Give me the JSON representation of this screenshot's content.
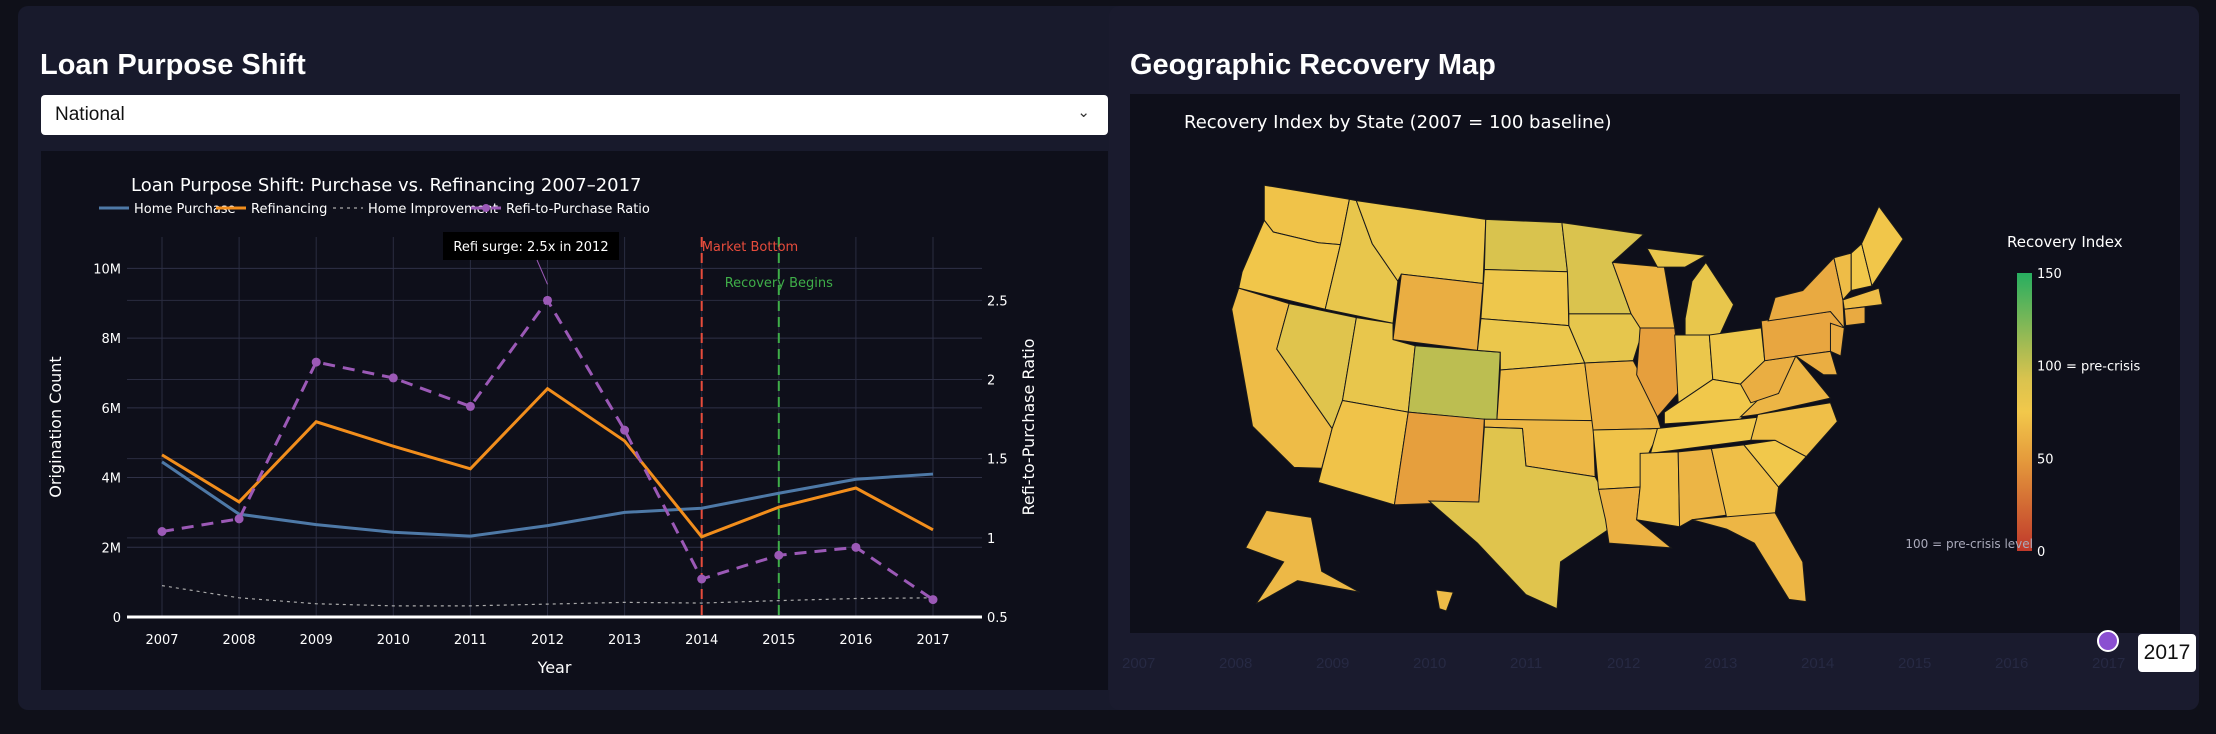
{
  "left_panel": {
    "title": "Loan Purpose Shift",
    "dropdown": {
      "selected": "National",
      "icon": "chevron-down-icon"
    }
  },
  "right_panel": {
    "title": "Geographic Recovery Map",
    "map_title": "Recovery Index by State (2007 = 100 baseline)",
    "colorbar": {
      "title": "Recovery Index",
      "ticks": [
        "150",
        "100 = pre-crisis",
        "50",
        "0"
      ],
      "tick_values": [
        150,
        100,
        50,
        0
      ],
      "range": [
        0,
        150
      ],
      "colorscale": [
        [
          0,
          "#c0392b"
        ],
        [
          0.33,
          "#e59b3c"
        ],
        [
          0.5,
          "#f2c84b"
        ],
        [
          0.62,
          "#d9c34e"
        ],
        [
          0.72,
          "#aebc52"
        ],
        [
          1,
          "#27ae60"
        ]
      ]
    },
    "annotation": "100 = pre-crisis level",
    "slider": {
      "years": [
        "2007",
        "2008",
        "2009",
        "2010",
        "2011",
        "2012",
        "2013",
        "2014",
        "2015",
        "2016",
        "2017"
      ],
      "selected": "2017"
    },
    "state_values": {
      "WA": 72,
      "OR": 74,
      "CA": 68,
      "NV": 88,
      "ID": 82,
      "MT": 80,
      "WY": 60,
      "UT": 82,
      "AZ": 72,
      "CO": 103,
      "NM": 52,
      "ND": 93,
      "SD": 78,
      "NE": 80,
      "KS": 68,
      "OK": 66,
      "TX": 88,
      "MN": 92,
      "IA": 84,
      "MO": 62,
      "AR": 72,
      "LA": 62,
      "WI": 65,
      "IL": 52,
      "MI": 82,
      "MIU": 82,
      "IN": 80,
      "OH": 78,
      "KY": 76,
      "TN": 76,
      "MS": 70,
      "AL": 64,
      "GA": 70,
      "FL": 65,
      "SC": 76,
      "NC": 70,
      "VA": 64,
      "WV": 60,
      "PA": 56,
      "NY": 58,
      "NJ": 58,
      "MD": 60,
      "VT": 68,
      "NH": 76,
      "ME": 74,
      "MA": 68,
      "CT": 58,
      "AK": 66,
      "HI": 68
    }
  },
  "chart_data": {
    "type": "line",
    "title": "Loan Purpose Shift: Purchase vs. Refinancing 2007–2017",
    "xlabel": "Year",
    "ylabel": "Origination Count",
    "y2label": "Refi-to-Purchase Ratio",
    "x": [
      2007,
      2008,
      2009,
      2010,
      2011,
      2012,
      2013,
      2014,
      2015,
      2016,
      2017
    ],
    "x_ticks": [
      "2007",
      "2008",
      "2009",
      "2010",
      "2011",
      "2012",
      "2013",
      "2014",
      "2015",
      "2016",
      "2017"
    ],
    "y_ticks": [
      "0",
      "2M",
      "4M",
      "6M",
      "8M",
      "10M"
    ],
    "y2_ticks": [
      "0.5",
      "1",
      "1.5",
      "2",
      "2.5"
    ],
    "ylim": [
      0,
      10900000
    ],
    "y2lim": [
      0.5,
      2.9
    ],
    "grid": true,
    "legend": "top",
    "series": [
      {
        "name": "Home Purchase",
        "axis": "y",
        "color": "#4e79a7",
        "dash": "solid",
        "values": [
          4450000,
          2950000,
          2650000,
          2430000,
          2320000,
          2620000,
          3000000,
          3120000,
          3550000,
          3950000,
          4100000
        ]
      },
      {
        "name": "Refinancing",
        "axis": "y",
        "color": "#f28e1c",
        "dash": "solid",
        "values": [
          4650000,
          3300000,
          5600000,
          4900000,
          4250000,
          6550000,
          5050000,
          2300000,
          3150000,
          3700000,
          2500000
        ]
      },
      {
        "name": "Home Improvement",
        "axis": "y",
        "color": "#aaaaaa",
        "dash": "dot",
        "values": [
          900000,
          550000,
          380000,
          320000,
          320000,
          370000,
          420000,
          400000,
          470000,
          530000,
          550000
        ]
      },
      {
        "name": "Refi-to-Purchase Ratio",
        "axis": "y2",
        "color": "#9b59b6",
        "dash": "dash",
        "markers": true,
        "values": [
          1.04,
          1.12,
          2.11,
          2.01,
          1.83,
          2.5,
          1.68,
          0.74,
          0.89,
          0.94,
          0.61
        ]
      }
    ],
    "annotations": [
      {
        "text": "Refi surge: 2.5x in 2012",
        "x": 2012,
        "y2": 2.5
      },
      {
        "text": "Market Bottom",
        "x": 2014,
        "color": "#e74c3c"
      },
      {
        "text": "Recovery Begins",
        "x": 2015,
        "color": "#3fae49"
      }
    ]
  }
}
